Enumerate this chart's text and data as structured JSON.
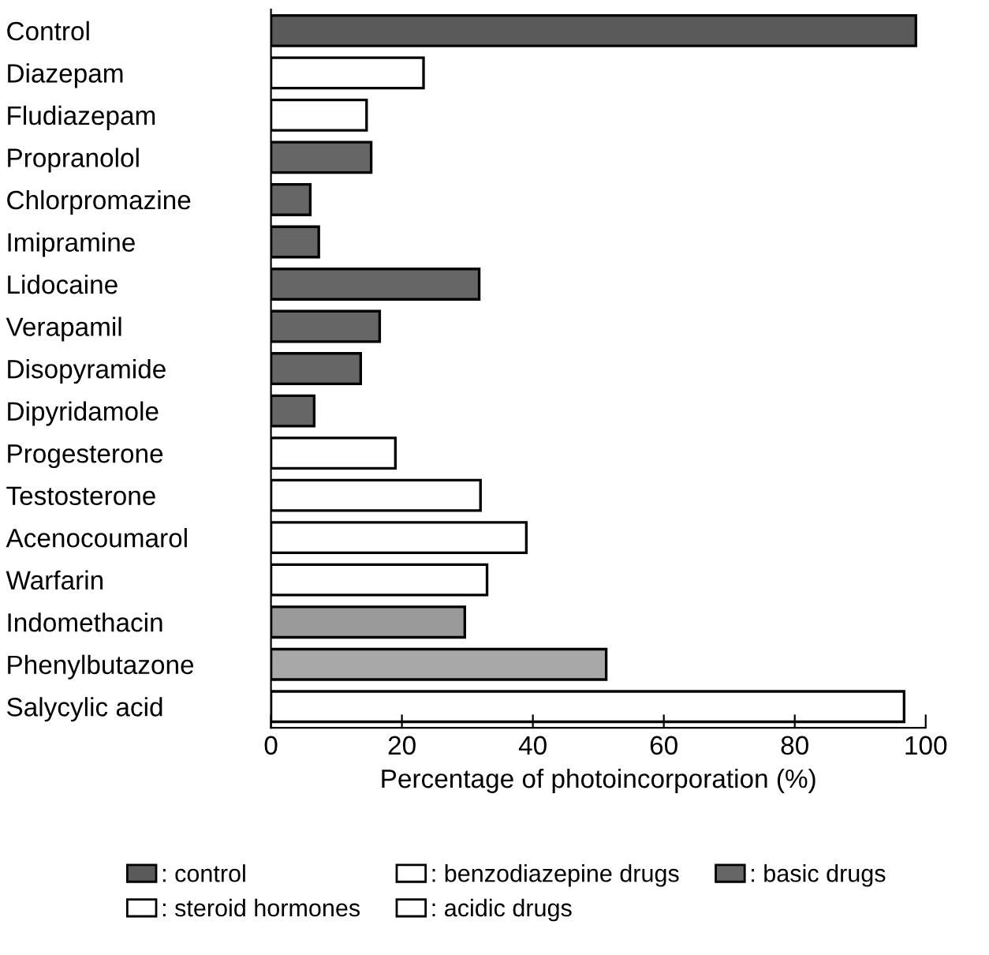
{
  "chart_data": {
    "type": "bar",
    "orientation": "horizontal",
    "xlabel": "Percentage of photoincorporation (%)",
    "categories": [
      "Control",
      "Diazepam",
      "Fludiazepam",
      "Propranolol",
      "Chlorpromazine",
      "Imipramine",
      "Lidocaine",
      "Verapamil",
      "Disopyramide",
      "Dipyridamole",
      "Progesterone",
      "Testosterone",
      "Acenocoumarol",
      "Warfarin",
      "Indomethacin",
      "Phenylbutazone",
      "Salycylic acid"
    ],
    "series": [
      {
        "name": ": control",
        "color": "#5a5a5a",
        "values": [
          98.5,
          null,
          null,
          null,
          null,
          null,
          null,
          null,
          null,
          null,
          null,
          null,
          null,
          null,
          null,
          null,
          null
        ]
      },
      {
        "name": ": benzodiazepine drugs",
        "color": "#ffffff",
        "values": [
          null,
          23.3,
          14.6,
          null,
          null,
          null,
          null,
          null,
          null,
          null,
          null,
          null,
          null,
          null,
          null,
          null,
          null
        ]
      },
      {
        "name": ": basic drugs",
        "color": "#666666",
        "values": [
          null,
          null,
          null,
          15.3,
          6.0,
          7.3,
          31.8,
          16.6,
          13.7,
          6.6,
          null,
          null,
          null,
          null,
          null,
          null,
          null
        ]
      },
      {
        "name": ": steroid hormones",
        "color": "#ffffff",
        "values": [
          null,
          null,
          null,
          null,
          null,
          null,
          null,
          null,
          null,
          null,
          19.0,
          32.0,
          null,
          null,
          null,
          null,
          null
        ]
      },
      {
        "name": ": acidic drugs",
        "color": "#ffffff",
        "colors": [
          null,
          null,
          null,
          null,
          null,
          null,
          null,
          null,
          null,
          null,
          null,
          null,
          "#ffffff",
          "#ffffff",
          "#9a9a9a",
          "#a8a8a8",
          "#ffffff"
        ],
        "values": [
          null,
          null,
          null,
          null,
          null,
          null,
          null,
          null,
          null,
          null,
          null,
          null,
          39.0,
          33.0,
          29.6,
          51.2,
          96.7
        ]
      }
    ],
    "xlim": [
      0,
      100
    ],
    "xticks": [
      0,
      20,
      40,
      60,
      80,
      100
    ],
    "legend": "bottom",
    "grid": false
  }
}
